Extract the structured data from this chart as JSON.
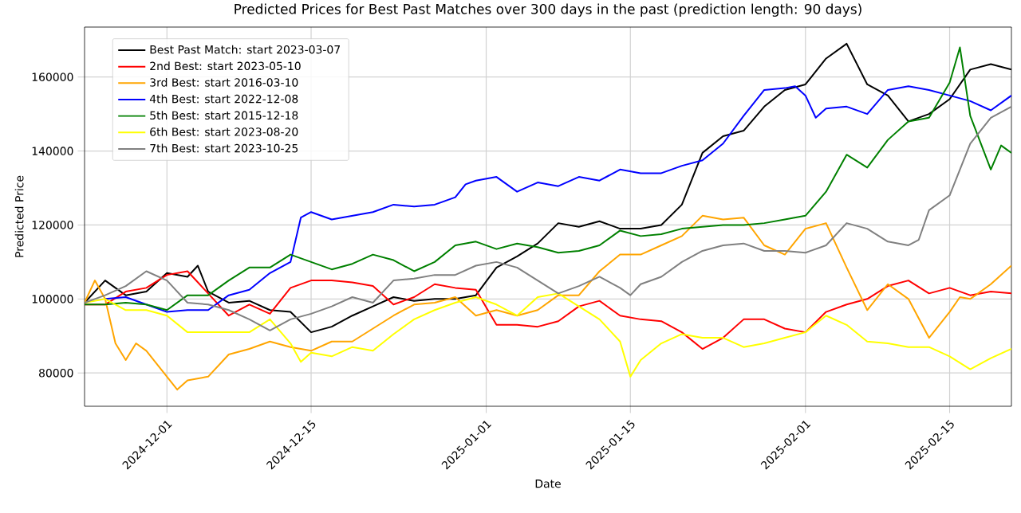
{
  "chart_data": {
    "type": "line",
    "title": "Predicted Prices for Best Past Matches over 300 days in the past (prediction length: 90 days)",
    "xlabel": "Date",
    "ylabel": "Predicted Price",
    "xlim": [
      "2024-11-23",
      "2025-02-21"
    ],
    "ylim": [
      71000,
      173500
    ],
    "xticks": [
      "2024-12-01",
      "2024-12-15",
      "2025-01-01",
      "2025-01-15",
      "2025-02-01",
      "2025-02-15"
    ],
    "yticks": [
      80000,
      100000,
      120000,
      140000,
      160000
    ],
    "grid": true,
    "legend": "top left",
    "marker": "none",
    "line_style": "solid",
    "series": [
      {
        "name": "Best Past Match: start 2023-03-07",
        "color": "#000000",
        "x": [
          "2024-11-23",
          "2024-11-25",
          "2024-11-27",
          "2024-11-29",
          "2024-12-01",
          "2024-12-03",
          "2024-12-04",
          "2024-12-05",
          "2024-12-07",
          "2024-12-09",
          "2024-12-11",
          "2024-12-13",
          "2024-12-15",
          "2024-12-17",
          "2024-12-19",
          "2024-12-21",
          "2024-12-23",
          "2024-12-25",
          "2024-12-27",
          "2024-12-29",
          "2024-12-31",
          "2025-01-02",
          "2025-01-04",
          "2025-01-06",
          "2025-01-08",
          "2025-01-10",
          "2025-01-12",
          "2025-01-14",
          "2025-01-16",
          "2025-01-18",
          "2025-01-20",
          "2025-01-22",
          "2025-01-24",
          "2025-01-26",
          "2025-01-28",
          "2025-01-30",
          "2025-02-01",
          "2025-02-03",
          "2025-02-05",
          "2025-02-07",
          "2025-02-09",
          "2025-02-11",
          "2025-02-13",
          "2025-02-15",
          "2025-02-17",
          "2025-02-19",
          "2025-02-21"
        ],
        "values": [
          99000,
          105000,
          101000,
          102000,
          107000,
          106000,
          109000,
          102000,
          99000,
          99500,
          97000,
          96500,
          91000,
          92500,
          95500,
          98000,
          100500,
          99500,
          100000,
          100000,
          101000,
          108500,
          111500,
          115000,
          120500,
          119500,
          121000,
          119000,
          119000,
          120000,
          125500,
          139500,
          144000,
          145500,
          152000,
          156500,
          158000,
          165000,
          169000,
          158000,
          155000,
          148000,
          150000,
          154000,
          162000,
          163500,
          162000
        ]
      },
      {
        "name": "2nd Best: start 2023-05-10",
        "color": "#ff0000",
        "x": [
          "2024-11-23",
          "2024-11-25",
          "2024-11-27",
          "2024-11-29",
          "2024-12-01",
          "2024-12-03",
          "2024-12-05",
          "2024-12-07",
          "2024-12-09",
          "2024-12-11",
          "2024-12-13",
          "2024-12-15",
          "2024-12-17",
          "2024-12-19",
          "2024-12-21",
          "2024-12-23",
          "2024-12-25",
          "2024-12-27",
          "2024-12-29",
          "2024-12-31",
          "2025-01-02",
          "2025-01-04",
          "2025-01-06",
          "2025-01-08",
          "2025-01-10",
          "2025-01-12",
          "2025-01-14",
          "2025-01-16",
          "2025-01-18",
          "2025-01-20",
          "2025-01-22",
          "2025-01-24",
          "2025-01-26",
          "2025-01-28",
          "2025-01-30",
          "2025-02-01",
          "2025-02-03",
          "2025-02-05",
          "2025-02-07",
          "2025-02-09",
          "2025-02-11",
          "2025-02-13",
          "2025-02-15",
          "2025-02-17",
          "2025-02-19",
          "2025-02-21"
        ],
        "values": [
          98500,
          98500,
          102000,
          103000,
          106500,
          107500,
          101500,
          95500,
          98500,
          96000,
          103000,
          105000,
          105000,
          104500,
          103500,
          98500,
          100500,
          104000,
          103000,
          102500,
          93000,
          93000,
          92500,
          94000,
          98000,
          99500,
          95500,
          94500,
          94000,
          91000,
          86500,
          89500,
          94500,
          94500,
          92000,
          91000,
          96500,
          98500,
          100000,
          103500,
          105000,
          101500,
          103000,
          101000,
          102000,
          101500
        ]
      },
      {
        "name": "3rd Best: start 2016-03-10",
        "color": "#ffa500",
        "x": [
          "2024-11-23",
          "2024-11-24",
          "2024-11-25",
          "2024-11-26",
          "2024-11-27",
          "2024-11-28",
          "2024-11-29",
          "2024-12-01",
          "2024-12-02",
          "2024-12-03",
          "2024-12-05",
          "2024-12-07",
          "2024-12-09",
          "2024-12-11",
          "2024-12-13",
          "2024-12-15",
          "2024-12-17",
          "2024-12-19",
          "2024-12-21",
          "2024-12-23",
          "2024-12-25",
          "2024-12-27",
          "2024-12-29",
          "2024-12-31",
          "2025-01-02",
          "2025-01-04",
          "2025-01-06",
          "2025-01-08",
          "2025-01-10",
          "2025-01-12",
          "2025-01-14",
          "2025-01-16",
          "2025-01-18",
          "2025-01-20",
          "2025-01-22",
          "2025-01-24",
          "2025-01-26",
          "2025-01-28",
          "2025-01-30",
          "2025-02-01",
          "2025-02-03",
          "2025-02-05",
          "2025-02-07",
          "2025-02-09",
          "2025-02-11",
          "2025-02-13",
          "2025-02-15",
          "2025-02-16",
          "2025-02-17",
          "2025-02-19",
          "2025-02-21"
        ],
        "values": [
          99000,
          105000,
          100000,
          88000,
          83500,
          88000,
          86000,
          79000,
          75500,
          78000,
          79000,
          85000,
          86500,
          88500,
          87000,
          86000,
          88500,
          88500,
          92000,
          95500,
          98500,
          99000,
          100500,
          95500,
          97000,
          95500,
          97000,
          101000,
          101000,
          107500,
          112000,
          112000,
          114500,
          117000,
          122500,
          121500,
          122000,
          114500,
          112000,
          119000,
          120500,
          108500,
          97000,
          104000,
          100000,
          89500,
          96500,
          100500,
          100000,
          104000,
          109000
        ]
      },
      {
        "name": "4th Best: start 2022-12-08",
        "color": "#0000ff",
        "x": [
          "2024-11-25",
          "2024-11-27",
          "2024-11-29",
          "2024-12-01",
          "2024-12-03",
          "2024-12-05",
          "2024-12-07",
          "2024-12-09",
          "2024-12-11",
          "2024-12-13",
          "2024-12-14",
          "2024-12-15",
          "2024-12-17",
          "2024-12-19",
          "2024-12-21",
          "2024-12-23",
          "2024-12-25",
          "2024-12-27",
          "2024-12-29",
          "2024-12-30",
          "2024-12-31",
          "2025-01-02",
          "2025-01-04",
          "2025-01-06",
          "2025-01-08",
          "2025-01-10",
          "2025-01-12",
          "2025-01-14",
          "2025-01-16",
          "2025-01-18",
          "2025-01-20",
          "2025-01-22",
          "2025-01-24",
          "2025-01-26",
          "2025-01-28",
          "2025-01-30",
          "2025-01-31",
          "2025-02-01",
          "2025-02-02",
          "2025-02-03",
          "2025-02-05",
          "2025-02-07",
          "2025-02-09",
          "2025-02-11",
          "2025-02-13",
          "2025-02-15",
          "2025-02-17",
          "2025-02-19",
          "2025-02-21"
        ],
        "values": [
          100000,
          100500,
          98500,
          96500,
          97000,
          97000,
          101000,
          102500,
          107000,
          110000,
          122000,
          123500,
          121500,
          122500,
          123500,
          125500,
          125000,
          125500,
          127500,
          131000,
          132000,
          133000,
          129000,
          131500,
          130500,
          133000,
          132000,
          135000,
          134000,
          134000,
          136000,
          137500,
          142000,
          149500,
          156500,
          157000,
          157500,
          155000,
          149000,
          151500,
          152000,
          150000,
          156500,
          157500,
          156500,
          155000,
          153500,
          151000,
          155000
        ]
      },
      {
        "name": "5th Best: start 2015-12-18",
        "color": "#008000",
        "x": [
          "2024-11-23",
          "2024-11-25",
          "2024-11-27",
          "2024-11-29",
          "2024-12-01",
          "2024-12-03",
          "2024-12-05",
          "2024-12-07",
          "2024-12-09",
          "2024-12-11",
          "2024-12-13",
          "2024-12-15",
          "2024-12-17",
          "2024-12-19",
          "2024-12-21",
          "2024-12-23",
          "2024-12-25",
          "2024-12-27",
          "2024-12-29",
          "2024-12-31",
          "2025-01-02",
          "2025-01-04",
          "2025-01-06",
          "2025-01-08",
          "2025-01-10",
          "2025-01-12",
          "2025-01-14",
          "2025-01-16",
          "2025-01-18",
          "2025-01-20",
          "2025-01-22",
          "2025-01-24",
          "2025-01-26",
          "2025-01-28",
          "2025-01-30",
          "2025-02-01",
          "2025-02-03",
          "2025-02-05",
          "2025-02-07",
          "2025-02-09",
          "2025-02-11",
          "2025-02-13",
          "2025-02-15",
          "2025-02-16",
          "2025-02-17",
          "2025-02-19",
          "2025-02-20",
          "2025-02-21"
        ],
        "values": [
          98500,
          98500,
          99000,
          98500,
          97000,
          101000,
          101000,
          105000,
          108500,
          108500,
          112000,
          110000,
          108000,
          109500,
          112000,
          110500,
          107500,
          110000,
          114500,
          115500,
          113500,
          115000,
          114000,
          112500,
          113000,
          114500,
          118500,
          117000,
          117500,
          119000,
          119500,
          120000,
          120000,
          120500,
          121500,
          122500,
          129000,
          139000,
          135500,
          143000,
          148000,
          149000,
          158500,
          168000,
          149500,
          135000,
          141500,
          139500
        ]
      },
      {
        "name": "6th Best: start 2023-08-20",
        "color": "#ffff00",
        "x": [
          "2024-11-23",
          "2024-11-25",
          "2024-11-27",
          "2024-11-29",
          "2024-12-01",
          "2024-12-03",
          "2024-12-05",
          "2024-12-07",
          "2024-12-09",
          "2024-12-11",
          "2024-12-13",
          "2024-12-14",
          "2024-12-15",
          "2024-12-17",
          "2024-12-19",
          "2024-12-21",
          "2024-12-23",
          "2024-12-25",
          "2024-12-27",
          "2024-12-29",
          "2024-12-31",
          "2025-01-02",
          "2025-01-04",
          "2025-01-06",
          "2025-01-08",
          "2025-01-10",
          "2025-01-12",
          "2025-01-14",
          "2025-01-15",
          "2025-01-16",
          "2025-01-18",
          "2025-01-20",
          "2025-01-22",
          "2025-01-24",
          "2025-01-26",
          "2025-01-28",
          "2025-01-30",
          "2025-02-01",
          "2025-02-03",
          "2025-02-05",
          "2025-02-07",
          "2025-02-09",
          "2025-02-11",
          "2025-02-13",
          "2025-02-15",
          "2025-02-17",
          "2025-02-19",
          "2025-02-21"
        ],
        "values": [
          99000,
          100000,
          97000,
          97000,
          95500,
          91000,
          91000,
          91000,
          91000,
          94500,
          88000,
          83000,
          85500,
          84500,
          87000,
          86000,
          90500,
          94500,
          97000,
          99000,
          100500,
          98500,
          95500,
          100500,
          101500,
          98000,
          94500,
          88500,
          79000,
          83500,
          88000,
          90500,
          89500,
          89500,
          87000,
          88000,
          89500,
          91000,
          95500,
          93000,
          88500,
          88000,
          87000,
          87000,
          84500,
          81000,
          84000,
          86500
        ]
      },
      {
        "name": "7th Best: start 2023-10-25",
        "color": "#808080",
        "x": [
          "2024-11-23",
          "2024-11-25",
          "2024-11-27",
          "2024-11-29",
          "2024-12-01",
          "2024-12-03",
          "2024-12-05",
          "2024-12-07",
          "2024-12-09",
          "2024-12-11",
          "2024-12-13",
          "2024-12-15",
          "2024-12-17",
          "2024-12-19",
          "2024-12-21",
          "2024-12-23",
          "2024-12-25",
          "2024-12-27",
          "2024-12-29",
          "2024-12-31",
          "2025-01-02",
          "2025-01-04",
          "2025-01-06",
          "2025-01-08",
          "2025-01-10",
          "2025-01-12",
          "2025-01-14",
          "2025-01-15",
          "2025-01-16",
          "2025-01-18",
          "2025-01-20",
          "2025-01-22",
          "2025-01-24",
          "2025-01-26",
          "2025-01-28",
          "2025-01-30",
          "2025-02-01",
          "2025-02-03",
          "2025-02-05",
          "2025-02-07",
          "2025-02-09",
          "2025-02-11",
          "2025-02-12",
          "2025-02-13",
          "2025-02-15",
          "2025-02-17",
          "2025-02-19",
          "2025-02-21"
        ],
        "values": [
          99000,
          101000,
          103500,
          107500,
          105000,
          99000,
          98500,
          97000,
          94500,
          91500,
          94500,
          96000,
          98000,
          100500,
          99000,
          105000,
          105500,
          106500,
          106500,
          109000,
          110000,
          108500,
          105000,
          101500,
          103500,
          106000,
          103000,
          101000,
          104000,
          106000,
          110000,
          113000,
          114500,
          115000,
          113000,
          113000,
          112500,
          114500,
          120500,
          119000,
          115500,
          114500,
          116000,
          124000,
          128000,
          142000,
          149000,
          152000
        ]
      }
    ]
  }
}
